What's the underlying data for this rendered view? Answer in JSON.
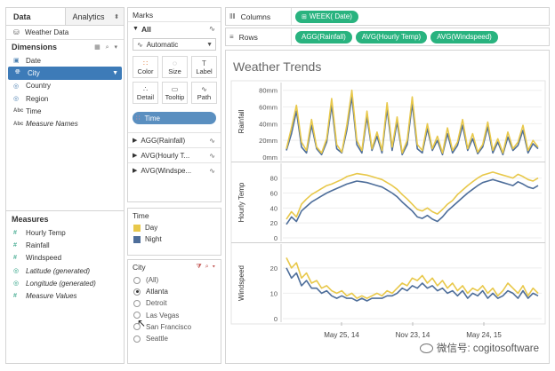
{
  "data_pane": {
    "tab_data": "Data",
    "tab_analytics": "Analytics",
    "source": "Weather Data",
    "dimensions_header": "Dimensions",
    "dimensions": [
      {
        "label": "Date",
        "icon": "calendar-icon",
        "type": "date"
      },
      {
        "label": "City",
        "icon": "globe-icon",
        "type": "geo",
        "selected": true
      },
      {
        "label": "Country",
        "icon": "globe-icon",
        "type": "geo"
      },
      {
        "label": "Region",
        "icon": "globe-icon",
        "type": "geo"
      },
      {
        "label": "Time",
        "icon": "abc-icon",
        "type": "string"
      },
      {
        "label": "Measure Names",
        "icon": "abc-icon",
        "type": "string",
        "italic": true
      }
    ],
    "measures_header": "Measures",
    "measures": [
      {
        "label": "Hourly Temp",
        "icon": "measure-icon"
      },
      {
        "label": "Rainfall",
        "icon": "measure-icon"
      },
      {
        "label": "Windspeed",
        "icon": "measure-icon"
      },
      {
        "label": "Latitude (generated)",
        "icon": "globe-icon",
        "italic": true
      },
      {
        "label": "Longitude (generated)",
        "icon": "globe-icon",
        "italic": true
      },
      {
        "label": "Measure Values",
        "icon": "measure-icon",
        "italic": true
      }
    ]
  },
  "marks": {
    "title": "Marks",
    "all_label": "All",
    "mark_type": "Automatic",
    "buttons": [
      "Color",
      "Size",
      "Label",
      "Detail",
      "Tooltip",
      "Path"
    ],
    "time_pill": "Time",
    "measure_tabs": [
      "AGG(Rainfall)",
      "AVG(Hourly T...",
      "AVG(Windspe..."
    ]
  },
  "legend": {
    "title": "Time",
    "items": [
      {
        "label": "Day",
        "color": "#e8c84a"
      },
      {
        "label": "Night",
        "color": "#4e6e9a"
      }
    ]
  },
  "city_filter": {
    "title": "City",
    "options": [
      {
        "label": "(All)",
        "checked": false
      },
      {
        "label": "Atlanta",
        "checked": true
      },
      {
        "label": "Detroit",
        "checked": false
      },
      {
        "label": "Las Vegas",
        "checked": false
      },
      {
        "label": "San Francisco",
        "checked": false
      },
      {
        "label": "Seattle",
        "checked": false
      }
    ]
  },
  "shelves": {
    "columns_label": "Columns",
    "columns_pills": [
      "WEEK( Date)"
    ],
    "rows_label": "Rows",
    "rows_pills": [
      "AGG(Rainfall)",
      "AVG(Hourly Temp)",
      "AVG(Windspeed)"
    ]
  },
  "watermark": "微信号: cogitosoftware",
  "colors": {
    "day": "#e8c84a",
    "night": "#4e6e9a",
    "pill_green": "#29b37f",
    "selected_blue": "#3d7bb8"
  },
  "chart_data": {
    "type": "line",
    "title": "Weather Trends",
    "x_tick_labels": [
      "May 25, 14",
      "Nov 23, 14",
      "May 24, 15"
    ],
    "panels": [
      {
        "ylabel": "Rainfall",
        "ylim": [
          0,
          85
        ],
        "tick_labels": [
          "80mm",
          "60mm",
          "40mm",
          "20mm",
          "0mm"
        ],
        "tick_values": [
          80,
          60,
          40,
          20,
          0
        ],
        "series": [
          {
            "name": "Day",
            "values": [
              10,
              35,
              62,
              18,
              8,
              45,
              12,
              5,
              22,
              70,
              15,
              6,
              38,
              80,
              20,
              8,
              55,
              10,
              30,
              8,
              65,
              12,
              48,
              5,
              20,
              72,
              15,
              8,
              40,
              10,
              25,
              5,
              35,
              8,
              18,
              45,
              10,
              28,
              6,
              15,
              42,
              8,
              22,
              5,
              30,
              10,
              18,
              38,
              8,
              20,
              12
            ]
          },
          {
            "name": "Night",
            "values": [
              8,
              28,
              55,
              12,
              5,
              38,
              10,
              3,
              18,
              62,
              10,
              5,
              32,
              72,
              15,
              5,
              48,
              8,
              25,
              5,
              58,
              8,
              42,
              3,
              15,
              64,
              10,
              5,
              34,
              8,
              20,
              3,
              28,
              5,
              14,
              38,
              8,
              22,
              4,
              12,
              36,
              5,
              18,
              3,
              24,
              8,
              14,
              32,
              5,
              16,
              10
            ]
          }
        ]
      },
      {
        "ylabel": "Hourly Temp",
        "ylim": [
          0,
          95
        ],
        "tick_labels": [
          "80",
          "60",
          "40",
          "20",
          "0"
        ],
        "tick_values": [
          80,
          60,
          40,
          20,
          0
        ],
        "series": [
          {
            "name": "Day",
            "values": [
              25,
              35,
              28,
              45,
              52,
              58,
              62,
              66,
              70,
              72,
              75,
              78,
              82,
              84,
              86,
              85,
              84,
              82,
              80,
              78,
              74,
              70,
              65,
              58,
              52,
              45,
              38,
              36,
              40,
              35,
              32,
              38,
              45,
              50,
              58,
              64,
              70,
              75,
              80,
              84,
              86,
              88,
              86,
              84,
              82,
              80,
              85,
              82,
              78,
              76,
              80
            ]
          },
          {
            "name": "Night",
            "values": [
              18,
              28,
              22,
              36,
              42,
              48,
              52,
              56,
              60,
              63,
              66,
              69,
              72,
              74,
              76,
              75,
              74,
              72,
              70,
              68,
              64,
              60,
              55,
              48,
              42,
              36,
              28,
              26,
              30,
              25,
              22,
              28,
              36,
              42,
              48,
              54,
              60,
              65,
              70,
              74,
              76,
              78,
              76,
              74,
              72,
              70,
              75,
              72,
              68,
              66,
              70
            ]
          }
        ]
      },
      {
        "ylabel": "Windspeed",
        "ylim": [
          0,
          28
        ],
        "tick_labels": [
          "20",
          "10",
          "0"
        ],
        "tick_values": [
          20,
          10,
          0
        ],
        "series": [
          {
            "name": "Day",
            "values": [
              24,
              20,
              22,
              16,
              18,
              14,
              15,
              12,
              13,
              11,
              10,
              11,
              9,
              10,
              8,
              9,
              8,
              9,
              10,
              9,
              11,
              10,
              12,
              14,
              13,
              16,
              15,
              17,
              14,
              16,
              13,
              15,
              12,
              14,
              11,
              13,
              10,
              12,
              11,
              13,
              10,
              12,
              9,
              11,
              14,
              12,
              10,
              13,
              9,
              12,
              10
            ]
          },
          {
            "name": "Night",
            "values": [
              20,
              16,
              18,
              13,
              15,
              12,
              12,
              10,
              11,
              9,
              8,
              9,
              8,
              8,
              7,
              8,
              7,
              8,
              8,
              8,
              9,
              9,
              10,
              12,
              11,
              13,
              12,
              14,
              12,
              13,
              11,
              12,
              10,
              11,
              9,
              11,
              8,
              10,
              9,
              11,
              8,
              10,
              8,
              9,
              11,
              10,
              8,
              11,
              8,
              10,
              9
            ]
          }
        ]
      }
    ]
  }
}
